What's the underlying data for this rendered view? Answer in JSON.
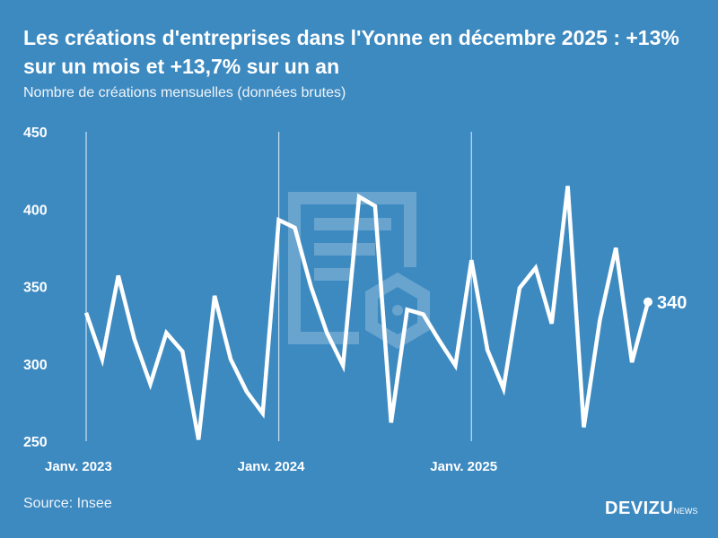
{
  "title": "Les créations d'entreprises dans l'Yonne en décembre 2025 : +13% sur un mois et +13,7% sur un an",
  "subtitle": "Nombre de créations mensuelles (données brutes)",
  "source": "Source: Insee",
  "brand": {
    "name": "DEVIZU",
    "suffix": "NEWS"
  },
  "colors": {
    "background": "#3d8ac1",
    "line": "#ffffff"
  },
  "chart_data": {
    "type": "line",
    "title": "Les créations d'entreprises dans l'Yonne en décembre 2025 : +13% sur un mois et +13,7% sur un an",
    "subtitle": "Nombre de créations mensuelles (données brutes)",
    "xlabel": "",
    "ylabel": "",
    "ylim": [
      250,
      450
    ],
    "yticks": [
      250,
      300,
      350,
      400,
      450
    ],
    "xticks": [
      {
        "label": "Janv. 2023",
        "index": 0
      },
      {
        "label": "Janv. 2024",
        "index": 12
      },
      {
        "label": "Janv. 2025",
        "index": 24
      }
    ],
    "grid": "vertical lines at year starts",
    "x": [
      "2023-01",
      "2023-02",
      "2023-03",
      "2023-04",
      "2023-05",
      "2023-06",
      "2023-07",
      "2023-08",
      "2023-09",
      "2023-10",
      "2023-11",
      "2023-12",
      "2024-01",
      "2024-02",
      "2024-03",
      "2024-04",
      "2024-05",
      "2024-06",
      "2024-07",
      "2024-08",
      "2024-09",
      "2024-10",
      "2024-11",
      "2024-12",
      "2025-01",
      "2025-02",
      "2025-03",
      "2025-04",
      "2025-05",
      "2025-06",
      "2025-07",
      "2025-08",
      "2025-09",
      "2025-10",
      "2025-11",
      "2025-12"
    ],
    "values": [
      333,
      303,
      357,
      316,
      287,
      320,
      308,
      251,
      344,
      303,
      282,
      268,
      393,
      388,
      350,
      320,
      299,
      408,
      402,
      262,
      335,
      332,
      315,
      299,
      367,
      309,
      284,
      349,
      362,
      326,
      415,
      259,
      328,
      375,
      301,
      340
    ],
    "last_label": "340"
  }
}
